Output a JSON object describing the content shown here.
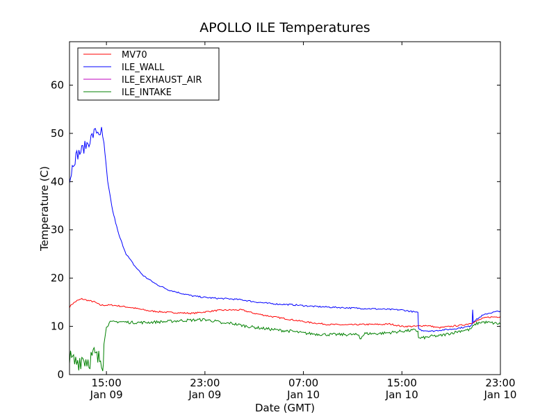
{
  "chart_data": {
    "type": "line",
    "title": "APOLLO ILE Temperatures",
    "xlabel": "Date (GMT)",
    "ylabel": "Temperature (C)",
    "xlim": [
      12.0,
      47.0
    ],
    "ylim": [
      0,
      69
    ],
    "x_unit": "hours since 2013-01-09 00:00 GMT",
    "yticks": [
      0,
      10,
      20,
      30,
      40,
      50,
      60
    ],
    "xticks": [
      {
        "x": 15,
        "time": "15:00",
        "date": "Jan 09"
      },
      {
        "x": 23,
        "time": "23:00",
        "date": "Jan 09"
      },
      {
        "x": 31,
        "time": "07:00",
        "date": "Jan 10"
      },
      {
        "x": 39,
        "time": "15:00",
        "date": "Jan 10"
      },
      {
        "x": 47,
        "time": "23:00",
        "date": "Jan 10"
      }
    ],
    "legend_location": "upper-left",
    "series": [
      {
        "name": "MV70",
        "color": "#ff0000",
        "x": [
          12.0,
          12.2,
          12.6,
          13.0,
          13.6,
          14.0,
          14.5,
          15.5,
          17.0,
          18.5,
          20.0,
          21.0,
          22.0,
          23.0,
          24.0,
          25.0,
          26.0,
          27.0,
          28.5,
          30.0,
          31.5,
          33.0,
          34.5,
          36.0,
          37.5,
          38.0,
          39.0,
          40.0,
          41.0,
          42.0,
          43.0,
          44.0,
          44.5,
          45.0,
          45.5,
          46.0,
          47.0
        ],
        "y": [
          14.0,
          14.6,
          15.3,
          15.7,
          15.3,
          15.1,
          14.4,
          14.4,
          13.9,
          13.2,
          12.9,
          12.8,
          12.7,
          13.0,
          13.3,
          13.4,
          13.4,
          12.7,
          12.0,
          11.4,
          10.8,
          10.4,
          10.3,
          10.4,
          10.4,
          10.5,
          10.0,
          10.0,
          10.2,
          9.7,
          10.0,
          10.3,
          10.6,
          11.0,
          11.6,
          11.9,
          12.0
        ],
        "noise": 0.15
      },
      {
        "name": "ILE_WALL",
        "color": "#0000ff",
        "x": [
          12.0,
          12.3,
          12.6,
          13.0,
          13.5,
          14.0,
          14.2,
          14.4,
          14.6,
          14.8,
          15.1,
          15.5,
          16.0,
          16.6,
          17.3,
          18.0,
          19.0,
          20.0,
          21.0,
          22.0,
          23.0,
          24.0,
          25.0,
          26.0,
          27.0,
          28.0,
          29.0,
          30.0,
          31.0,
          32.0,
          33.0,
          34.0,
          35.0,
          36.0,
          37.0,
          38.0,
          39.0,
          40.0,
          40.3,
          40.35,
          40.6,
          41.0,
          41.5,
          42.0,
          42.5,
          43.0,
          43.5,
          44.0,
          44.5,
          44.7,
          44.75,
          44.8,
          45.0,
          45.5,
          46.0,
          47.0
        ],
        "y": [
          40.0,
          44.0,
          45.5,
          46.5,
          48.0,
          50.0,
          50.5,
          50.2,
          50.4,
          48.0,
          40.0,
          34.0,
          29.0,
          25.0,
          22.5,
          20.5,
          18.8,
          17.6,
          16.9,
          16.3,
          16.0,
          15.8,
          15.7,
          15.5,
          15.1,
          14.8,
          14.6,
          14.5,
          14.3,
          14.1,
          14.0,
          13.9,
          13.8,
          13.7,
          13.6,
          13.5,
          13.4,
          13.0,
          12.8,
          9.5,
          9.2,
          9.1,
          9.0,
          9.2,
          9.3,
          9.4,
          9.6,
          9.8,
          10.0,
          10.5,
          13.5,
          11.0,
          11.3,
          12.2,
          12.7,
          13.2
        ],
        "noise": 0.15
      },
      {
        "name": "ILE_EXHAUST_AIR",
        "color": "#bf00bf",
        "x": [],
        "y": []
      },
      {
        "name": "ILE_INTAKE",
        "color": "#008000",
        "x": [
          12.0,
          12.5,
          13.0,
          13.5,
          14.0,
          14.3,
          14.6,
          14.7,
          14.8,
          15.0,
          15.3,
          16.0,
          17.0,
          18.0,
          19.0,
          20.0,
          21.0,
          22.0,
          23.0,
          24.0,
          24.5,
          25.0,
          26.0,
          27.0,
          28.0,
          29.0,
          30.0,
          31.0,
          32.0,
          33.0,
          34.0,
          35.0,
          35.5,
          35.6,
          36.0,
          37.0,
          38.0,
          39.0,
          40.0,
          40.3,
          40.35,
          40.6,
          41.0,
          41.5,
          42.0,
          42.5,
          43.0,
          43.5,
          44.0,
          44.5,
          45.0,
          45.5,
          46.0,
          47.0
        ],
        "y": [
          3.0,
          2.5,
          3.5,
          3.0,
          4.0,
          3.0,
          3.5,
          2.5,
          6.0,
          10.0,
          10.8,
          11.0,
          10.8,
          10.8,
          10.9,
          11.0,
          11.2,
          11.3,
          11.4,
          11.0,
          10.5,
          10.7,
          10.2,
          9.8,
          9.5,
          9.2,
          9.0,
          8.6,
          8.4,
          8.3,
          8.3,
          8.3,
          8.2,
          7.5,
          8.5,
          8.5,
          8.7,
          9.0,
          9.2,
          9.0,
          7.5,
          7.6,
          7.7,
          8.0,
          8.0,
          8.3,
          8.6,
          8.9,
          9.2,
          9.3,
          10.5,
          10.9,
          10.8,
          10.5
        ],
        "noise": 0.3
      }
    ]
  }
}
